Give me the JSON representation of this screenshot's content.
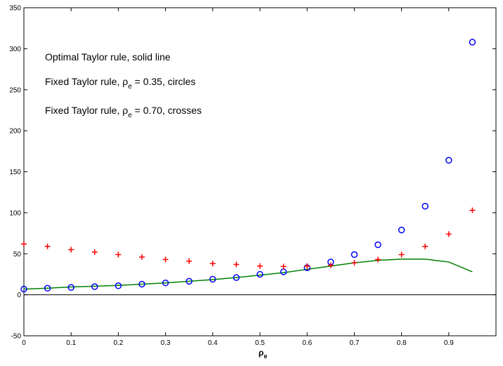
{
  "chart_data": {
    "type": "line",
    "title": "",
    "xlabel": "ρ",
    "xlabel_sub": "e",
    "ylabel": "",
    "xlim": [
      0,
      1
    ],
    "ylim": [
      -50,
      350
    ],
    "xticks": [
      0,
      0.1,
      0.2,
      0.3,
      0.4,
      0.5,
      0.6,
      0.7,
      0.8,
      0.9
    ],
    "xtick_labels": [
      "0",
      "0.1",
      "0.2",
      "0.3",
      "0.4",
      "0.5",
      "0.6",
      "0.7",
      "0.8",
      "0.9"
    ],
    "yticks": [
      -50,
      0,
      50,
      100,
      150,
      200,
      250,
      300,
      350
    ],
    "ytick_labels": [
      "-50",
      "0",
      "50",
      "100",
      "150",
      "200",
      "250",
      "300",
      "350"
    ],
    "grid": false,
    "legend": "none",
    "zero_line": true,
    "x": [
      0,
      0.05,
      0.1,
      0.15,
      0.2,
      0.25,
      0.3,
      0.35,
      0.4,
      0.45,
      0.5,
      0.55,
      0.6,
      0.65,
      0.7,
      0.75,
      0.8,
      0.85,
      0.9,
      0.95
    ],
    "series": [
      {
        "marker": "line",
        "color": "#008000",
        "values": [
          7,
          8,
          9.5,
          10.5,
          11.5,
          13,
          14.5,
          16.5,
          18.5,
          21,
          24,
          27,
          31,
          35,
          39,
          42,
          43.5,
          43.5,
          40,
          28
        ]
      },
      {
        "marker": "circle",
        "color": "#0000ff",
        "values": [
          7,
          8,
          9,
          10,
          11,
          13,
          14.5,
          16.5,
          19,
          21,
          25,
          28,
          33,
          40,
          49,
          61,
          79,
          108,
          164,
          308
        ]
      },
      {
        "marker": "plus",
        "color": "#ff0000",
        "values": [
          62,
          59,
          55,
          52,
          49,
          46,
          43,
          41,
          38,
          37,
          35,
          34.5,
          35,
          36,
          39,
          43,
          49,
          59,
          74,
          103
        ]
      }
    ],
    "annotations": [
      {
        "text": "Optimal Taylor rule, solid line",
        "sub": "",
        "post": ""
      },
      {
        "text": "Fixed Taylor rule, ρ",
        "sub": "e",
        "post": " = 0.35, circles"
      },
      {
        "text": "Fixed Taylor rule, ρ",
        "sub": "e",
        "post": " = 0.70, crosses"
      }
    ]
  }
}
